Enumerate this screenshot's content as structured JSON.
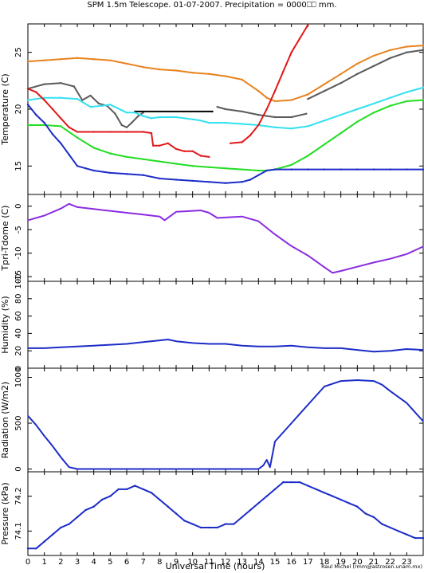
{
  "title": "SPM 1.5m Telescope. 01-07-2007. Precipitation = 0000⎕⎕ mm.",
  "xlabel": "Universal Time (hours)",
  "credit": "Raul Michel (rmm@astrosen.unam.mx)",
  "colors": {
    "orange": "#e8821e",
    "gray": "#5a5a5a",
    "cyan": "#33e0f0",
    "red": "#e01818",
    "green": "#22dd22",
    "blue": "#1c2cc8",
    "purple": "#8a2be2",
    "black": "#000000"
  },
  "chart_data": [
    {
      "type": "scatter",
      "ylabel": "Temperature (C)",
      "xlim": [
        0,
        24
      ],
      "ylim": [
        12.5,
        27.5
      ],
      "yticks": [
        15,
        20,
        25
      ],
      "xticks": [
        0,
        1,
        2,
        3,
        4,
        5,
        6,
        7,
        8,
        9,
        10,
        11,
        12,
        13,
        14,
        15,
        16,
        17,
        18,
        19,
        20,
        21,
        22,
        23
      ],
      "series": [
        {
          "color": "orange",
          "x": [
            0,
            1,
            2,
            3,
            4,
            5,
            6,
            7,
            8,
            9,
            10,
            11,
            12,
            13,
            14,
            14.5,
            15,
            16,
            17,
            18,
            19,
            20,
            21,
            22,
            23,
            24
          ],
          "y": [
            24.2,
            24.3,
            24.4,
            24.5,
            24.4,
            24.3,
            24.0,
            23.7,
            23.5,
            23.4,
            23.2,
            23.1,
            22.9,
            22.6,
            21.6,
            21.0,
            20.7,
            20.8,
            21.3,
            22.2,
            23.1,
            24.0,
            24.7,
            25.2,
            25.5,
            25.6
          ]
        },
        {
          "color": "gray",
          "x": [
            0,
            1,
            2,
            2.8,
            3.3,
            3.8,
            4.3,
            4.8,
            5.3,
            5.7,
            6.0,
            6.3,
            6.7,
            7.0
          ],
          "y": [
            21.8,
            22.2,
            22.3,
            22.0,
            20.8,
            21.2,
            20.5,
            20.3,
            19.6,
            18.6,
            18.4,
            18.8,
            19.4,
            19.7
          ]
        },
        {
          "color": "black",
          "x": [
            6.5,
            11.2
          ],
          "y": [
            19.8,
            19.8
          ]
        },
        {
          "color": "gray",
          "x": [
            11.5,
            12,
            13,
            14,
            15,
            16,
            16.9
          ],
          "y": [
            20.2,
            20.0,
            19.8,
            19.5,
            19.3,
            19.3,
            19.6
          ]
        },
        {
          "color": "gray",
          "x": [
            17.0,
            18,
            19,
            20,
            21,
            22,
            23,
            24
          ],
          "y": [
            20.9,
            21.6,
            22.3,
            23.1,
            23.8,
            24.5,
            25.0,
            25.2
          ]
        },
        {
          "color": "cyan",
          "x": [
            0,
            1,
            2,
            3,
            3.8,
            4.5,
            5,
            6,
            6.5,
            7,
            7.5,
            8,
            8.5,
            9,
            9.5,
            10,
            10.5,
            11,
            11.5,
            12,
            13,
            14,
            15,
            16,
            17,
            18,
            19,
            20,
            21,
            22,
            23,
            24
          ],
          "y": [
            20.8,
            21.0,
            21.0,
            20.9,
            20.2,
            20.3,
            20.4,
            19.7,
            19.7,
            19.4,
            19.2,
            19.3,
            19.3,
            19.3,
            19.2,
            19.1,
            19.0,
            18.8,
            18.8,
            18.8,
            18.7,
            18.6,
            18.4,
            18.3,
            18.5,
            19.0,
            19.5,
            20.0,
            20.5,
            21.0,
            21.5,
            21.9
          ]
        },
        {
          "color": "red",
          "x": [
            0,
            0.5,
            1,
            1.5,
            2,
            2.5,
            3,
            4,
            5,
            6,
            7,
            7.5,
            7.6,
            8,
            8.5,
            9,
            9.5,
            10,
            10.5,
            11
          ],
          "y": [
            21.8,
            21.5,
            20.8,
            20.0,
            19.2,
            18.4,
            18.0,
            18.0,
            18.0,
            18.0,
            18.0,
            17.9,
            16.8,
            16.8,
            17.0,
            16.5,
            16.3,
            16.3,
            15.9,
            15.8
          ]
        },
        {
          "color": "red",
          "x": [
            12.3,
            13,
            13.5,
            14,
            14.5,
            15,
            15.5,
            16,
            16.5,
            17
          ],
          "y": [
            17.0,
            17.1,
            17.7,
            18.6,
            20.0,
            21.6,
            23.3,
            25.0,
            26.2,
            27.4
          ]
        },
        {
          "color": "green",
          "x": [
            0,
            1,
            2,
            3,
            4,
            5,
            6,
            7,
            8,
            9,
            10,
            11,
            12,
            13,
            14,
            14.5,
            15,
            16,
            17,
            18,
            19,
            20,
            21,
            22,
            23,
            24
          ],
          "y": [
            18.6,
            18.6,
            18.5,
            17.5,
            16.6,
            16.1,
            15.8,
            15.6,
            15.4,
            15.2,
            15.0,
            14.9,
            14.8,
            14.7,
            14.6,
            14.6,
            14.7,
            15.1,
            15.9,
            16.9,
            17.9,
            18.9,
            19.7,
            20.3,
            20.7,
            20.8
          ]
        },
        {
          "color": "blue",
          "x": [
            0,
            0.5,
            1,
            1.5,
            2,
            2.5,
            3,
            3.5,
            4,
            5,
            6,
            7,
            8,
            9,
            10,
            11,
            12,
            13,
            13.5,
            14,
            14.5,
            15,
            16,
            17,
            18,
            19,
            20,
            21,
            22,
            23,
            24
          ],
          "y": [
            20.4,
            19.5,
            18.8,
            17.8,
            17.0,
            16.0,
            15.0,
            14.8,
            14.6,
            14.4,
            14.3,
            14.2,
            13.9,
            13.8,
            13.7,
            13.6,
            13.5,
            13.6,
            13.8,
            14.2,
            14.6,
            14.7,
            14.7,
            14.7,
            14.7,
            14.7,
            14.7,
            14.7,
            14.7,
            14.7,
            14.7
          ]
        }
      ]
    },
    {
      "type": "line",
      "ylabel": "Tpri-Tdome (C)",
      "xlim": [
        0,
        24
      ],
      "ylim": [
        -16,
        2.5
      ],
      "yticks": [
        0,
        -5,
        -10,
        -15
      ],
      "series": [
        {
          "color": "purple",
          "x": [
            0,
            1,
            2,
            2.5,
            3,
            4,
            5,
            6,
            7,
            8,
            8.3,
            9,
            10,
            10.5,
            11,
            11.5,
            12,
            13,
            14,
            15,
            16,
            17,
            18,
            18.5,
            19,
            20,
            21,
            22,
            23,
            24
          ],
          "y": [
            -3.0,
            -2.0,
            -0.5,
            0.5,
            -0.2,
            -0.6,
            -1.0,
            -1.4,
            -1.8,
            -2.2,
            -3.0,
            -1.2,
            -1.0,
            -0.9,
            -1.4,
            -2.5,
            -2.4,
            -2.2,
            -3.2,
            -6.0,
            -8.5,
            -10.5,
            -13.0,
            -14.2,
            -13.8,
            -12.9,
            -12.0,
            -11.2,
            -10.2,
            -8.6
          ]
        }
      ]
    },
    {
      "type": "line",
      "ylabel": "Humidity (%)",
      "xlim": [
        0,
        24
      ],
      "ylim": [
        0,
        100
      ],
      "yticks": [
        0,
        20,
        40,
        60,
        80,
        100
      ],
      "series": [
        {
          "color": "blue",
          "x": [
            0,
            1,
            2,
            3,
            4,
            5,
            6,
            7,
            8,
            8.5,
            9,
            10,
            11,
            12,
            13,
            14,
            15,
            16,
            17,
            18,
            19,
            20,
            21,
            22,
            23,
            24
          ],
          "y": [
            23,
            23,
            24,
            25,
            26,
            27,
            28,
            30,
            32,
            33,
            31,
            29,
            28,
            28,
            26,
            25,
            25,
            26,
            24,
            23,
            23,
            21,
            19,
            20,
            22,
            21
          ]
        }
      ]
    },
    {
      "type": "line",
      "ylabel": "Radiation (W/m2)",
      "xlim": [
        0,
        24
      ],
      "ylim": [
        -30,
        1100
      ],
      "yticks": [
        0,
        500,
        1000
      ],
      "series": [
        {
          "color": "blue",
          "x": [
            0,
            0.5,
            1,
            1.5,
            2,
            2.5,
            3,
            4,
            5,
            6,
            7,
            8,
            9,
            10,
            11,
            12,
            13,
            14,
            14.3,
            14.5,
            14.7,
            15,
            16,
            17,
            18,
            19,
            20,
            21,
            21.5,
            22,
            23,
            24
          ],
          "y": [
            580,
            480,
            360,
            250,
            130,
            20,
            0,
            0,
            0,
            0,
            0,
            0,
            0,
            0,
            0,
            0,
            0,
            0,
            40,
            100,
            20,
            300,
            500,
            700,
            900,
            960,
            970,
            960,
            920,
            850,
            720,
            520
          ]
        }
      ]
    },
    {
      "type": "scatter",
      "ylabel": "Pressure (kPa)",
      "xlim": [
        0,
        24
      ],
      "ylim": [
        74.03,
        74.27
      ],
      "yticks": [
        74.1,
        74.2
      ],
      "series": [
        {
          "color": "blue",
          "x": [
            0,
            0.5,
            1,
            1.5,
            2,
            2.5,
            3,
            3.5,
            4,
            4.5,
            5,
            5.5,
            6,
            6.5,
            7,
            7.5,
            8,
            8.5,
            9,
            9.5,
            10,
            10.5,
            11,
            11.5,
            12,
            12.5,
            13,
            13.5,
            14,
            14.5,
            15,
            15.5,
            16,
            16.5,
            17,
            17.5,
            18,
            18.5,
            19,
            19.5,
            20,
            20.5,
            21,
            21.5,
            22,
            22.5,
            23,
            23.5,
            24
          ],
          "y": [
            74.05,
            74.05,
            74.07,
            74.09,
            74.11,
            74.12,
            74.14,
            74.16,
            74.17,
            74.19,
            74.2,
            74.22,
            74.22,
            74.23,
            74.22,
            74.21,
            74.19,
            74.17,
            74.15,
            74.13,
            74.12,
            74.11,
            74.11,
            74.11,
            74.12,
            74.12,
            74.14,
            74.16,
            74.18,
            74.2,
            74.22,
            74.24,
            74.24,
            74.24,
            74.23,
            74.22,
            74.21,
            74.2,
            74.19,
            74.18,
            74.17,
            74.15,
            74.14,
            74.12,
            74.11,
            74.1,
            74.09,
            74.08,
            74.08
          ]
        }
      ]
    }
  ]
}
